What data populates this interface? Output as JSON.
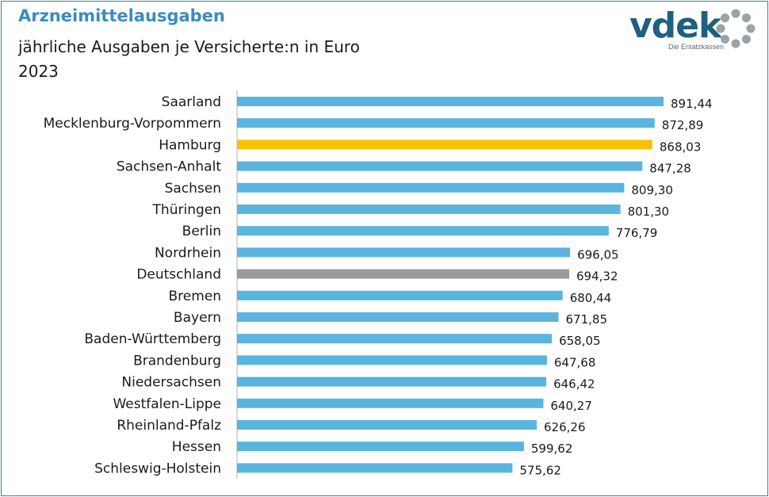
{
  "header": {
    "title": "Arzneimittelausgaben",
    "subtitle": "jährliche Ausgaben je Versicherte:n in Euro",
    "year": "2023"
  },
  "logo": {
    "word": "vdek",
    "tagline": "Die Ersatzkassen",
    "color": "#1f5f7f",
    "ring_color": "#9aa3a8"
  },
  "colors": {
    "default_bar": "#5ab4de",
    "highlight_bar": "#f7c200",
    "reference_bar": "#9b9b9b",
    "axis": "#b5b5b5"
  },
  "chart_data": {
    "type": "bar",
    "orientation": "horizontal",
    "categories": [
      "Saarland",
      "Mecklenburg-Vorpommern",
      "Hamburg",
      "Sachsen-Anhalt",
      "Sachsen",
      "Thüringen",
      "Berlin",
      "Nordrhein",
      "Deutschland",
      "Bremen",
      "Bayern",
      "Baden-Württemberg",
      "Brandenburg",
      "Niedersachsen",
      "Westfalen-Lippe",
      "Rheinland-Pfalz",
      "Hessen",
      "Schleswig-Holstein"
    ],
    "values": [
      891.44,
      872.89,
      868.03,
      847.28,
      809.3,
      801.3,
      776.79,
      696.05,
      694.32,
      680.44,
      671.85,
      658.05,
      647.68,
      646.42,
      640.27,
      626.26,
      599.62,
      575.62
    ],
    "value_labels": [
      "891,44",
      "872,89",
      "868,03",
      "847,28",
      "809,30",
      "801,30",
      "776,79",
      "696,05",
      "694,32",
      "680,44",
      "671,85",
      "658,05",
      "647,68",
      "646,42",
      "640,27",
      "626,26",
      "599,62",
      "575,62"
    ],
    "highlight": "Hamburg",
    "reference": "Deutschland",
    "xlim": [
      0,
      891.44
    ],
    "grid": false,
    "legend": "none"
  }
}
